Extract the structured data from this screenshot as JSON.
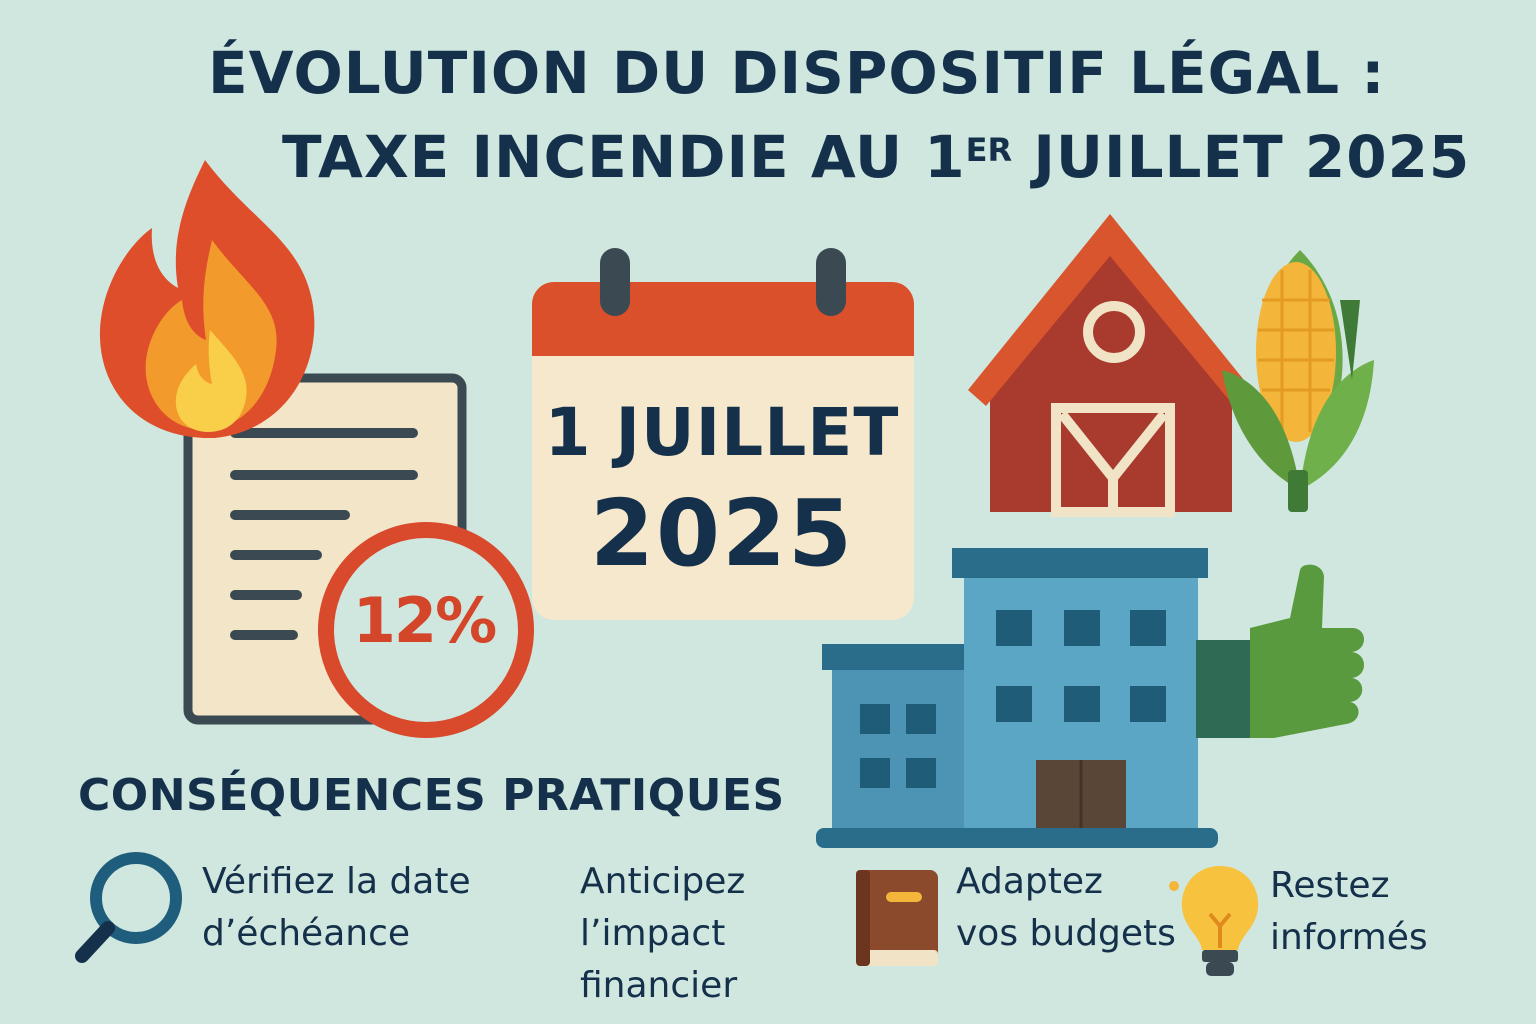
{
  "title": {
    "line1": "ÉVOLUTION DU DISPOSITIF LÉGAL :",
    "line2_main": "TAXE INCENDIE AU 1",
    "line2_sup": "ER",
    "line2_end": " JUILLET 2025"
  },
  "calendar": {
    "line1": "1 JUILLET",
    "line2": "2025"
  },
  "document_badge": {
    "percent": "12%"
  },
  "section": {
    "title": "CONSÉQUENCES PRATIQUES"
  },
  "items": [
    {
      "icon": "magnifier-icon",
      "line1": "Vérifiez la date",
      "line2": "d’échéance"
    },
    {
      "icon": "",
      "line1": "Anticipez",
      "line2": "l’impact",
      "line3": "financier"
    },
    {
      "icon": "book-icon",
      "line1": "Adaptez",
      "line2": "vos budgets"
    },
    {
      "icon": "lightbulb-icon",
      "line1": "Restez",
      "line2": "informés"
    }
  ],
  "colors": {
    "background": "#cfe7df",
    "text": "#15304a",
    "accent_red": "#d4462a",
    "barn_red": "#a83a2e",
    "building_blue": "#5ba6c4",
    "green": "#5a9a3e"
  }
}
